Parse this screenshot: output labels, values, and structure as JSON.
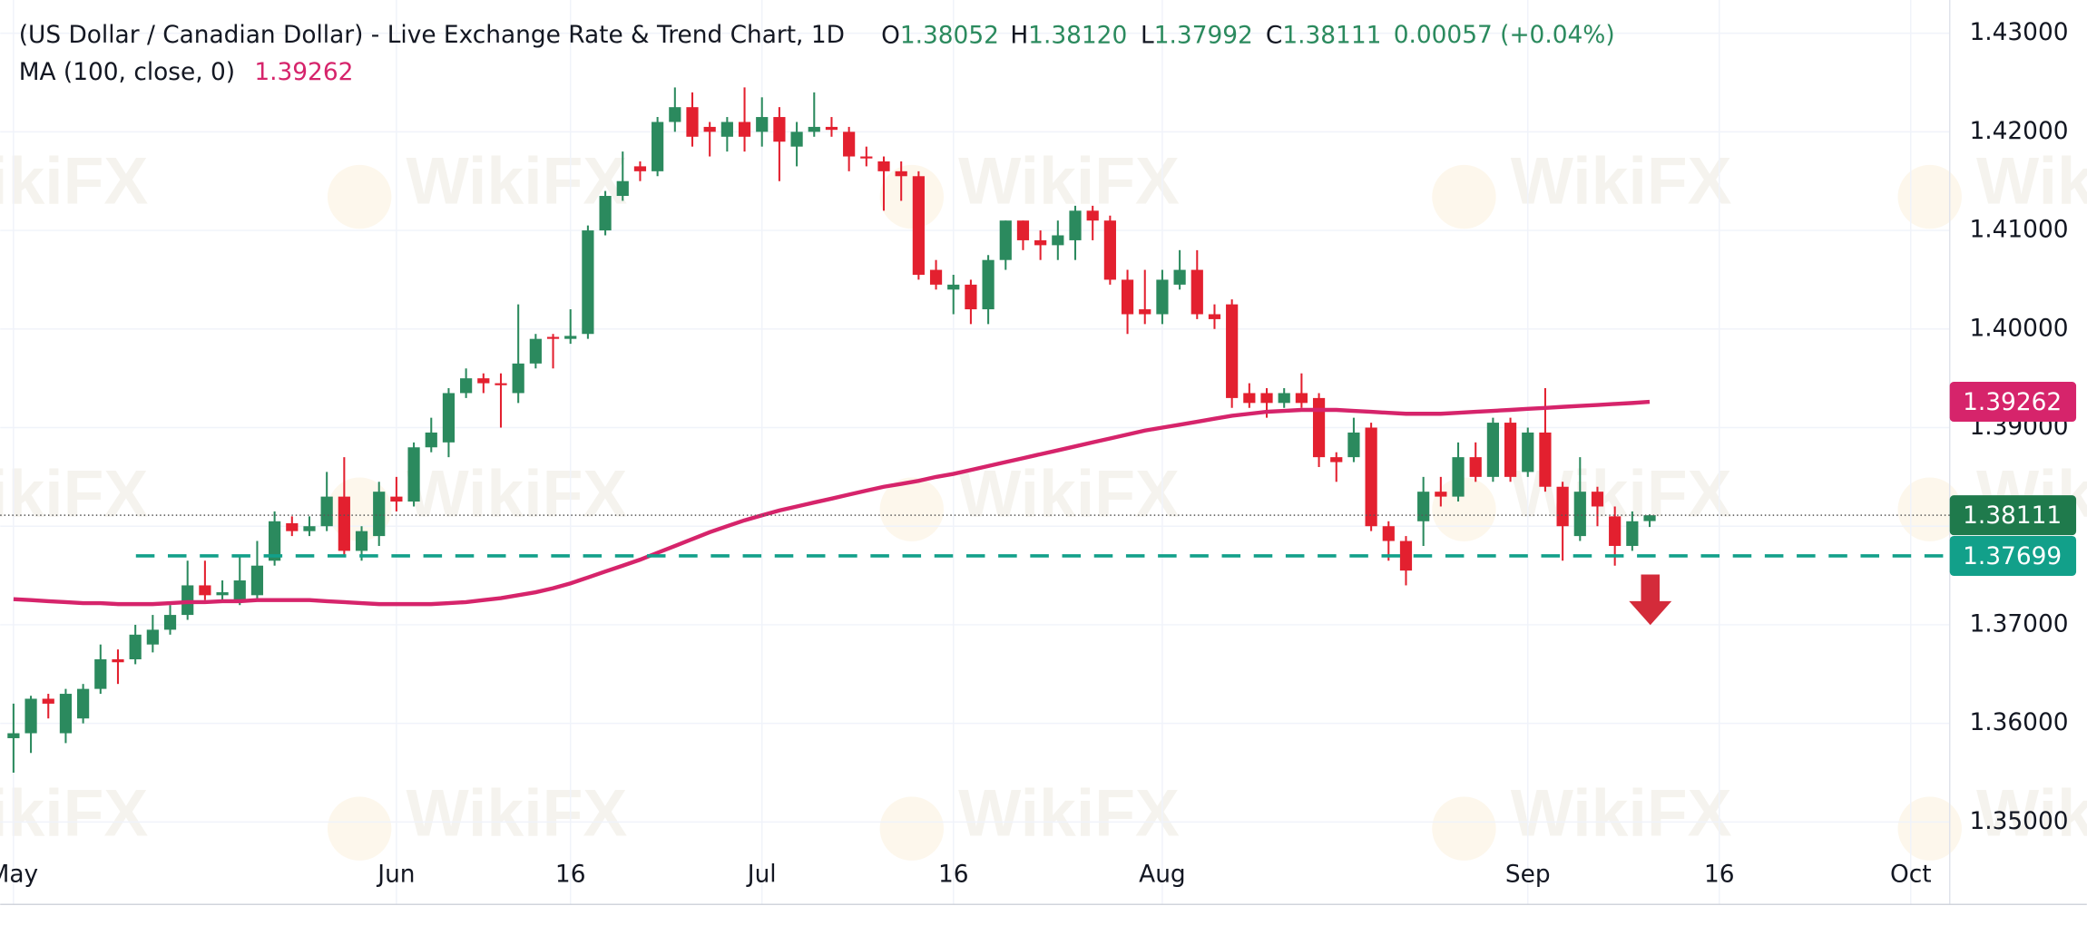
{
  "chart_data": {
    "type": "candlestick",
    "title": "(US Dollar / Canadian Dollar) - Live Exchange Rate & Trend Chart, 1D",
    "ohlc_labels": [
      "O1.38052",
      "H1.38120",
      "L1.37992",
      "C1.38111"
    ],
    "change_label": "0.00057 (+0.04%)",
    "up_color": "#2b8a5e",
    "down_color": "#e3202f",
    "candles": {
      "open": [
        1.3585,
        1.359,
        1.3625,
        1.359,
        1.3605,
        1.3635,
        1.3665,
        1.3665,
        1.368,
        1.3695,
        1.371,
        1.374,
        1.373,
        1.3725,
        1.373,
        1.3765,
        1.3803,
        1.3795,
        1.38,
        1.383,
        1.3775,
        1.379,
        1.383,
        1.3825,
        1.388,
        1.3885,
        1.3935,
        1.395,
        1.3945,
        1.3935,
        1.3965,
        1.3992,
        1.399,
        1.3995,
        1.41,
        1.4135,
        1.4165,
        1.416,
        1.421,
        1.4225,
        1.4205,
        1.4195,
        1.421,
        1.42,
        1.4215,
        1.4185,
        1.42,
        1.4205,
        1.42,
        1.4175,
        1.417,
        1.416,
        1.4155,
        1.406,
        1.404,
        1.4045,
        1.402,
        1.407,
        1.411,
        1.409,
        1.4085,
        1.409,
        1.412,
        1.411,
        1.405,
        1.402,
        1.4015,
        1.4045,
        1.406,
        1.4015,
        1.4025,
        1.3935,
        1.3935,
        1.3925,
        1.3935,
        1.393,
        1.387,
        1.387,
        1.39,
        1.38,
        1.3785,
        1.3805,
        1.3835,
        1.383,
        1.387,
        1.385,
        1.3905,
        1.3855,
        1.3895,
        1.384,
        1.379,
        1.3835,
        1.381,
        1.378,
        1.38052
      ],
      "high": [
        1.362,
        1.3628,
        1.363,
        1.3635,
        1.364,
        1.368,
        1.3675,
        1.37,
        1.371,
        1.372,
        1.3765,
        1.3765,
        1.3745,
        1.377,
        1.3785,
        1.3815,
        1.381,
        1.381,
        1.3855,
        1.387,
        1.38,
        1.3845,
        1.385,
        1.3885,
        1.391,
        1.394,
        1.396,
        1.3955,
        1.3955,
        1.4025,
        1.3995,
        1.3995,
        1.402,
        1.4105,
        1.414,
        1.418,
        1.417,
        1.4215,
        1.4245,
        1.424,
        1.421,
        1.4215,
        1.4245,
        1.4235,
        1.4225,
        1.421,
        1.424,
        1.4215,
        1.4205,
        1.4185,
        1.4175,
        1.417,
        1.416,
        1.407,
        1.4055,
        1.405,
        1.4075,
        1.411,
        1.411,
        1.41,
        1.411,
        1.4125,
        1.4125,
        1.4115,
        1.406,
        1.406,
        1.406,
        1.408,
        1.408,
        1.4025,
        1.403,
        1.3945,
        1.394,
        1.394,
        1.3955,
        1.3935,
        1.3875,
        1.391,
        1.3905,
        1.3805,
        1.379,
        1.385,
        1.385,
        1.3885,
        1.3885,
        1.391,
        1.391,
        1.39,
        1.394,
        1.3845,
        1.387,
        1.384,
        1.382,
        1.3815,
        1.3812
      ],
      "low": [
        1.355,
        1.357,
        1.3605,
        1.358,
        1.36,
        1.363,
        1.364,
        1.366,
        1.3672,
        1.369,
        1.3705,
        1.3725,
        1.3725,
        1.372,
        1.3725,
        1.376,
        1.379,
        1.379,
        1.3795,
        1.377,
        1.3765,
        1.378,
        1.3815,
        1.382,
        1.3875,
        1.387,
        1.393,
        1.3935,
        1.39,
        1.3925,
        1.396,
        1.396,
        1.3985,
        1.399,
        1.4095,
        1.413,
        1.415,
        1.4155,
        1.42,
        1.4185,
        1.4175,
        1.418,
        1.418,
        1.4185,
        1.415,
        1.4165,
        1.4195,
        1.4195,
        1.416,
        1.4165,
        1.412,
        1.413,
        1.405,
        1.404,
        1.4015,
        1.4005,
        1.4005,
        1.406,
        1.408,
        1.407,
        1.407,
        1.407,
        1.409,
        1.4045,
        1.3995,
        1.4005,
        1.4005,
        1.404,
        1.401,
        1.4,
        1.392,
        1.392,
        1.391,
        1.392,
        1.392,
        1.386,
        1.3845,
        1.3865,
        1.3795,
        1.3765,
        1.374,
        1.378,
        1.382,
        1.3825,
        1.3845,
        1.3845,
        1.3845,
        1.385,
        1.3835,
        1.3765,
        1.3785,
        1.38,
        1.376,
        1.3775,
        1.37992
      ],
      "close": [
        1.359,
        1.3625,
        1.362,
        1.363,
        1.3635,
        1.3665,
        1.3662,
        1.369,
        1.3695,
        1.371,
        1.374,
        1.373,
        1.3733,
        1.3745,
        1.376,
        1.3805,
        1.3795,
        1.38,
        1.383,
        1.3775,
        1.3795,
        1.3835,
        1.3825,
        1.388,
        1.3895,
        1.3935,
        1.395,
        1.3945,
        1.3943,
        1.3965,
        1.399,
        1.399,
        1.3993,
        1.41,
        1.4135,
        1.415,
        1.416,
        1.421,
        1.4225,
        1.4195,
        1.42,
        1.421,
        1.4195,
        1.4215,
        1.419,
        1.42,
        1.4205,
        1.4202,
        1.4175,
        1.4173,
        1.416,
        1.4155,
        1.4055,
        1.4045,
        1.4045,
        1.402,
        1.407,
        1.411,
        1.409,
        1.4085,
        1.4095,
        1.412,
        1.411,
        1.405,
        1.4015,
        1.4015,
        1.405,
        1.406,
        1.4015,
        1.401,
        1.393,
        1.3925,
        1.3925,
        1.3935,
        1.3925,
        1.387,
        1.3865,
        1.3895,
        1.38,
        1.3785,
        1.3755,
        1.3835,
        1.383,
        1.387,
        1.385,
        1.3905,
        1.385,
        1.3895,
        1.384,
        1.38,
        1.3835,
        1.382,
        1.378,
        1.3805,
        1.38111
      ]
    },
    "ma": {
      "name": "MA (100, close, 0)",
      "value_label": "1.39262",
      "color": "#d6246b",
      "values": [
        1.3726,
        1.3725,
        1.3724,
        1.3723,
        1.3722,
        1.3722,
        1.3721,
        1.3721,
        1.3721,
        1.3722,
        1.3723,
        1.3723,
        1.3724,
        1.3724,
        1.3725,
        1.3725,
        1.3725,
        1.3725,
        1.3724,
        1.3723,
        1.3722,
        1.3721,
        1.3721,
        1.3721,
        1.3721,
        1.3722,
        1.3723,
        1.3725,
        1.3727,
        1.373,
        1.3733,
        1.3737,
        1.3742,
        1.3748,
        1.3754,
        1.376,
        1.3766,
        1.3773,
        1.378,
        1.3787,
        1.3794,
        1.38,
        1.3806,
        1.3811,
        1.3816,
        1.382,
        1.3824,
        1.3828,
        1.3832,
        1.3836,
        1.384,
        1.3843,
        1.3846,
        1.385,
        1.3853,
        1.3857,
        1.3861,
        1.3865,
        1.3869,
        1.3873,
        1.3877,
        1.3881,
        1.3885,
        1.3889,
        1.3893,
        1.3897,
        1.39,
        1.3903,
        1.3906,
        1.3909,
        1.3912,
        1.3914,
        1.3916,
        1.3917,
        1.3918,
        1.3918,
        1.3918,
        1.3917,
        1.3916,
        1.3915,
        1.3914,
        1.3914,
        1.3914,
        1.3915,
        1.3916,
        1.3917,
        1.3918,
        1.3919,
        1.392,
        1.3921,
        1.3922,
        1.3923,
        1.3924,
        1.3925,
        1.39262
      ]
    },
    "support": {
      "value": 1.37699,
      "label": "1.37699",
      "color": "#12a08a"
    },
    "last_price_label": "1.38111",
    "last_price_color": "#1f7a4c",
    "watermark": "WikiFX",
    "grid": true,
    "xlim": [
      -0.765,
      111.24
    ],
    "xticks": [
      {
        "value": 0,
        "label": "May"
      },
      {
        "value": 22,
        "label": "Jun"
      },
      {
        "value": 32,
        "label": "16"
      },
      {
        "value": 43,
        "label": "Jul"
      },
      {
        "value": 54,
        "label": "16"
      },
      {
        "value": 66,
        "label": "Aug"
      },
      {
        "value": 87,
        "label": "Sep"
      },
      {
        "value": 98,
        "label": "16"
      },
      {
        "value": 109,
        "label": "Oct"
      }
    ],
    "ylim": [
      1.34771,
      1.43337
    ],
    "yticks": [
      {
        "value": 1.35,
        "label": "1.35000"
      },
      {
        "value": 1.36,
        "label": "1.36000"
      },
      {
        "value": 1.37,
        "label": "1.37000"
      },
      {
        "value": 1.38,
        "label": "1.38000"
      },
      {
        "value": 1.39,
        "label": "1.39000"
      },
      {
        "value": 1.4,
        "label": "1.40000"
      },
      {
        "value": 1.41,
        "label": "1.41000"
      },
      {
        "value": 1.42,
        "label": "1.42000"
      },
      {
        "value": 1.43,
        "label": "1.43000"
      }
    ]
  }
}
